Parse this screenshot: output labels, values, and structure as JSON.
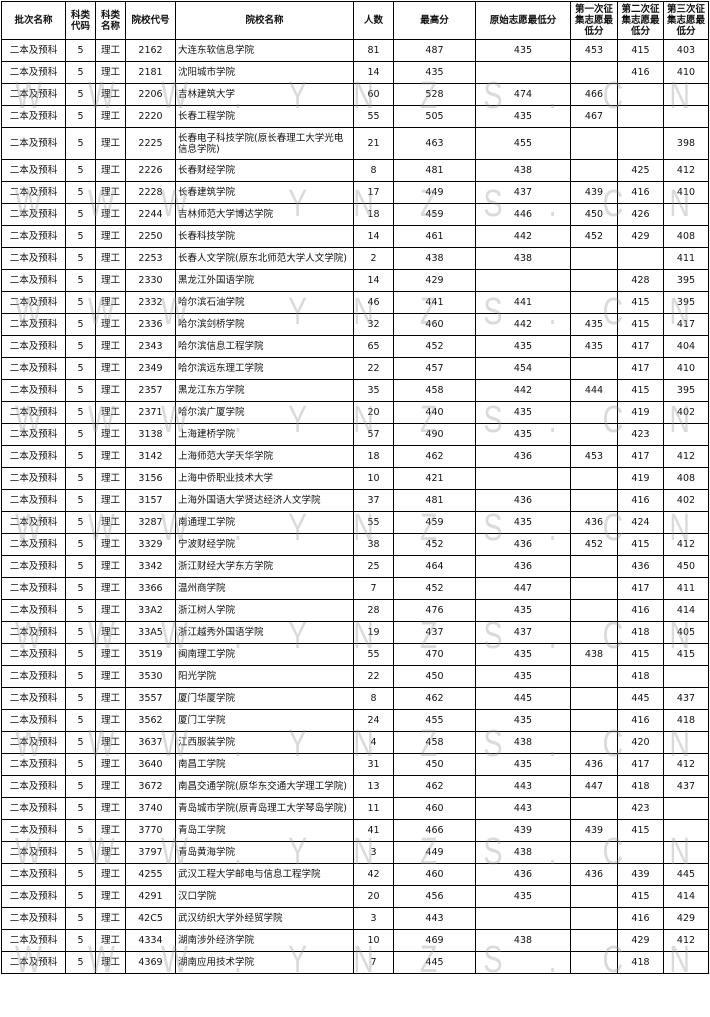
{
  "headers": [
    "批次名称",
    "科类代码",
    "科类名称",
    "院校代号",
    "院校名称",
    "人数",
    "最高分",
    "原始志愿最低分",
    "第一次征集志愿最低分",
    "第二次征集志愿最低分",
    "第三次征集志愿最低分"
  ],
  "watermark": "WWW.YNZS.CN",
  "rows": [
    [
      "二本及预科",
      "5",
      "理工",
      "2162",
      "大连东软信息学院",
      "81",
      "487",
      "435",
      "453",
      "415",
      "403"
    ],
    [
      "二本及预科",
      "5",
      "理工",
      "2181",
      "沈阳城市学院",
      "14",
      "435",
      "",
      "",
      "416",
      "410"
    ],
    [
      "二本及预科",
      "5",
      "理工",
      "2206",
      "吉林建筑大学",
      "60",
      "528",
      "474",
      "466",
      "",
      ""
    ],
    [
      "二本及预科",
      "5",
      "理工",
      "2220",
      "长春工程学院",
      "55",
      "505",
      "435",
      "467",
      "",
      ""
    ],
    [
      "二本及预科",
      "5",
      "理工",
      "2225",
      "长春电子科技学院(原长春理工大学光电信息学院)",
      "21",
      "463",
      "455",
      "",
      "",
      "398"
    ],
    [
      "二本及预科",
      "5",
      "理工",
      "2226",
      "长春财经学院",
      "8",
      "481",
      "438",
      "",
      "425",
      "412"
    ],
    [
      "二本及预科",
      "5",
      "理工",
      "2228",
      "长春建筑学院",
      "17",
      "449",
      "437",
      "439",
      "416",
      "410"
    ],
    [
      "二本及预科",
      "5",
      "理工",
      "2244",
      "吉林师范大学博达学院",
      "18",
      "459",
      "446",
      "450",
      "426",
      ""
    ],
    [
      "二本及预科",
      "5",
      "理工",
      "2250",
      "长春科技学院",
      "14",
      "461",
      "442",
      "452",
      "429",
      "408"
    ],
    [
      "二本及预科",
      "5",
      "理工",
      "2253",
      "长春人文学院(原东北师范大学人文学院)",
      "2",
      "438",
      "438",
      "",
      "",
      "411"
    ],
    [
      "二本及预科",
      "5",
      "理工",
      "2330",
      "黑龙江外国语学院",
      "14",
      "429",
      "",
      "",
      "428",
      "395"
    ],
    [
      "二本及预科",
      "5",
      "理工",
      "2332",
      "哈尔滨石油学院",
      "46",
      "441",
      "441",
      "",
      "415",
      "395"
    ],
    [
      "二本及预科",
      "5",
      "理工",
      "2336",
      "哈尔滨剑桥学院",
      "32",
      "460",
      "442",
      "435",
      "415",
      "417"
    ],
    [
      "二本及预科",
      "5",
      "理工",
      "2343",
      "哈尔滨信息工程学院",
      "65",
      "452",
      "435",
      "435",
      "417",
      "404"
    ],
    [
      "二本及预科",
      "5",
      "理工",
      "2349",
      "哈尔滨远东理工学院",
      "22",
      "457",
      "454",
      "",
      "417",
      "410"
    ],
    [
      "二本及预科",
      "5",
      "理工",
      "2357",
      "黑龙江东方学院",
      "35",
      "458",
      "442",
      "444",
      "415",
      "395"
    ],
    [
      "二本及预科",
      "5",
      "理工",
      "2371",
      "哈尔滨广厦学院",
      "20",
      "440",
      "435",
      "",
      "419",
      "402"
    ],
    [
      "二本及预科",
      "5",
      "理工",
      "3138",
      "上海建桥学院",
      "57",
      "490",
      "435",
      "",
      "423",
      ""
    ],
    [
      "二本及预科",
      "5",
      "理工",
      "3142",
      "上海师范大学天华学院",
      "18",
      "462",
      "436",
      "453",
      "417",
      "412"
    ],
    [
      "二本及预科",
      "5",
      "理工",
      "3156",
      "上海中侨职业技术大学",
      "10",
      "421",
      "",
      "",
      "419",
      "408"
    ],
    [
      "二本及预科",
      "5",
      "理工",
      "3157",
      "上海外国语大学贤达经济人文学院",
      "37",
      "481",
      "436",
      "",
      "416",
      "402"
    ],
    [
      "二本及预科",
      "5",
      "理工",
      "3287",
      "南通理工学院",
      "55",
      "459",
      "435",
      "436",
      "424",
      ""
    ],
    [
      "二本及预科",
      "5",
      "理工",
      "3329",
      "宁波财经学院",
      "38",
      "452",
      "436",
      "452",
      "415",
      "412"
    ],
    [
      "二本及预科",
      "5",
      "理工",
      "3342",
      "浙江财经大学东方学院",
      "25",
      "464",
      "436",
      "",
      "436",
      "450"
    ],
    [
      "二本及预科",
      "5",
      "理工",
      "3366",
      "温州商学院",
      "7",
      "452",
      "447",
      "",
      "417",
      "411"
    ],
    [
      "二本及预科",
      "5",
      "理工",
      "33A2",
      "浙江树人学院",
      "28",
      "476",
      "435",
      "",
      "416",
      "414"
    ],
    [
      "二本及预科",
      "5",
      "理工",
      "33A5",
      "浙江越秀外国语学院",
      "19",
      "437",
      "437",
      "",
      "418",
      "405"
    ],
    [
      "二本及预科",
      "5",
      "理工",
      "3519",
      "闽南理工学院",
      "55",
      "470",
      "435",
      "438",
      "415",
      "415"
    ],
    [
      "二本及预科",
      "5",
      "理工",
      "3530",
      "阳光学院",
      "22",
      "450",
      "435",
      "",
      "418",
      ""
    ],
    [
      "二本及预科",
      "5",
      "理工",
      "3557",
      "厦门华厦学院",
      "8",
      "462",
      "445",
      "",
      "445",
      "437"
    ],
    [
      "二本及预科",
      "5",
      "理工",
      "3562",
      "厦门工学院",
      "24",
      "455",
      "435",
      "",
      "416",
      "418"
    ],
    [
      "二本及预科",
      "5",
      "理工",
      "3637",
      "江西服装学院",
      "4",
      "458",
      "438",
      "",
      "420",
      ""
    ],
    [
      "二本及预科",
      "5",
      "理工",
      "3640",
      "南昌工学院",
      "31",
      "450",
      "435",
      "436",
      "417",
      "412"
    ],
    [
      "二本及预科",
      "5",
      "理工",
      "3672",
      "南昌交通学院(原华东交通大学理工学院)",
      "13",
      "462",
      "443",
      "447",
      "418",
      "437"
    ],
    [
      "二本及预科",
      "5",
      "理工",
      "3740",
      "青岛城市学院(原青岛理工大学琴岛学院)",
      "11",
      "460",
      "443",
      "",
      "423",
      ""
    ],
    [
      "二本及预科",
      "5",
      "理工",
      "3770",
      "青岛工学院",
      "41",
      "466",
      "439",
      "439",
      "415",
      ""
    ],
    [
      "二本及预科",
      "5",
      "理工",
      "3797",
      "青岛黄海学院",
      "3",
      "449",
      "438",
      "",
      "",
      ""
    ],
    [
      "二本及预科",
      "5",
      "理工",
      "4255",
      "武汉工程大学邮电与信息工程学院",
      "42",
      "460",
      "436",
      "436",
      "439",
      "445"
    ],
    [
      "二本及预科",
      "5",
      "理工",
      "4291",
      "汉口学院",
      "20",
      "456",
      "435",
      "",
      "415",
      "414"
    ],
    [
      "二本及预科",
      "5",
      "理工",
      "42C5",
      "武汉纺织大学外经贸学院",
      "3",
      "443",
      "",
      "",
      "416",
      "429"
    ],
    [
      "二本及预科",
      "5",
      "理工",
      "4334",
      "湖南涉外经济学院",
      "10",
      "469",
      "438",
      "",
      "429",
      "412"
    ],
    [
      "二本及预科",
      "5",
      "理工",
      "4369",
      "湖南应用技术学院",
      "7",
      "445",
      "",
      "",
      "418",
      ""
    ]
  ]
}
